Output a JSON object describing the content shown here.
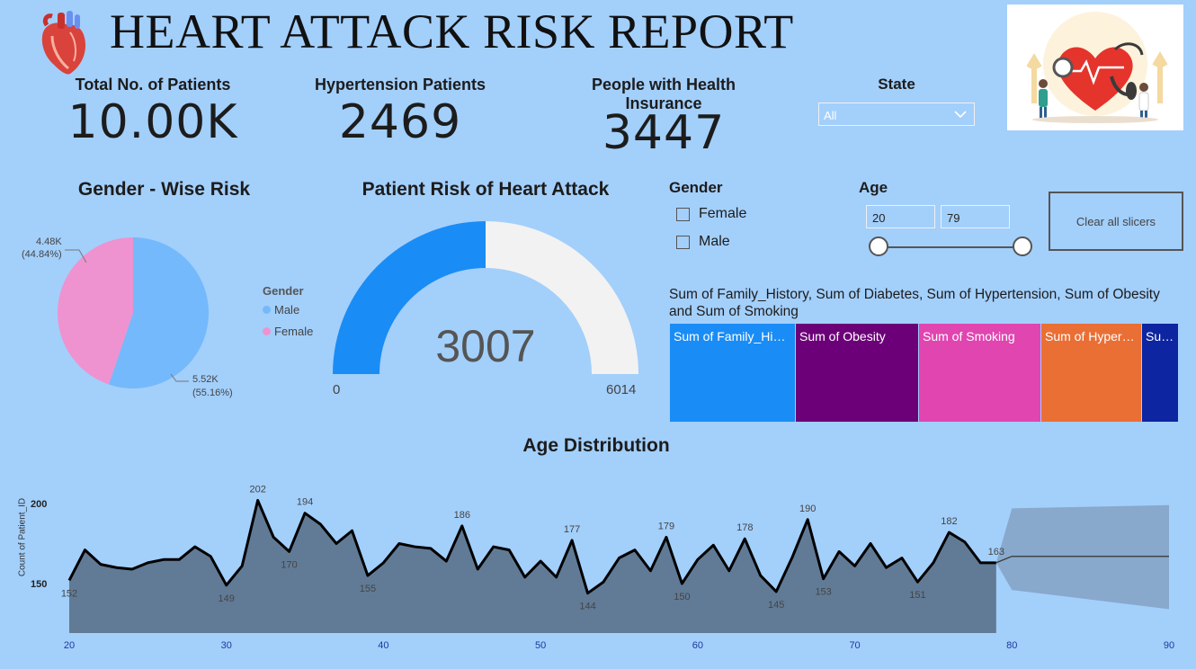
{
  "header": {
    "title": "HEART ATTACK RISK REPORT"
  },
  "kpis": [
    {
      "label": "Total No. of Patients",
      "value": "10.00K"
    },
    {
      "label": "Hypertension Patients",
      "value": "2469"
    },
    {
      "label": "People with Health Insurance",
      "value": "3447"
    }
  ],
  "state_slicer": {
    "title": "State",
    "selected": "All"
  },
  "gender_slicer": {
    "title": "Gender",
    "options": [
      "Female",
      "Male"
    ]
  },
  "age_slicer": {
    "title": "Age",
    "min": "20",
    "max": "79"
  },
  "clear_button": {
    "label": "Clear all slicers"
  },
  "colors": {
    "background": "#a3cffb",
    "male": "#74b9fc",
    "female": "#ee93cf",
    "gauge_fill": "#1a8cf5",
    "gauge_track": "#f2f2f2",
    "area_fill": "#617b96",
    "forecast": "#88a8cc"
  },
  "gender_chart": {
    "title": "Gender - Wise Risk",
    "legend_title": "Gender",
    "slice_labels": [
      {
        "value": "4.48K",
        "pct": "(44.84%)"
      },
      {
        "value": "5.52K",
        "pct": "(55.16%)"
      }
    ]
  },
  "gauge": {
    "title": "Patient Risk of Heart Attack",
    "value_label": "3007",
    "min_label": "0",
    "max_label": "6014"
  },
  "treemap": {
    "title": "Sum of Family_History, Sum of Diabetes, Sum of Hypertension, Sum of Obesity and Sum of Smoking",
    "cells": [
      {
        "label": "Sum of Family_History",
        "color": "#1a8cf5"
      },
      {
        "label": "Sum of Obesity",
        "color": "#6c0078"
      },
      {
        "label": "Sum of Smoking",
        "color": "#e045b0"
      },
      {
        "label": "Sum of Hypertension",
        "color": "#ea6f35"
      },
      {
        "label": "Sum of Diabetes",
        "color": "#0d25a0"
      }
    ]
  },
  "age_chart": {
    "title": "Age Distribution",
    "ylabel": "Count of Patient_ID"
  },
  "chart_data": [
    {
      "type": "pie",
      "categories": [
        "Male",
        "Female"
      ],
      "values": [
        5.52,
        4.48
      ],
      "percents": [
        55.16,
        44.84
      ],
      "legend": "left-of-center"
    },
    {
      "type": "gauge",
      "value": 3007,
      "min": 0,
      "max": 6014
    },
    {
      "type": "treemap",
      "categories": [
        "Sum of Family_History",
        "Sum of Obesity",
        "Sum of Smoking",
        "Sum of Hypertension",
        "Sum of Diabetes"
      ],
      "relative_sizes": [
        139,
        137,
        136,
        112,
        41
      ]
    },
    {
      "type": "area",
      "x": [
        20,
        21,
        22,
        23,
        24,
        25,
        26,
        27,
        28,
        29,
        30,
        31,
        32,
        33,
        34,
        35,
        36,
        37,
        38,
        39,
        40,
        41,
        42,
        43,
        44,
        45,
        46,
        47,
        48,
        49,
        50,
        51,
        52,
        53,
        54,
        55,
        56,
        57,
        58,
        59,
        60,
        61,
        62,
        63,
        64,
        65,
        66,
        67,
        68,
        69,
        70,
        71,
        72,
        73,
        74,
        75,
        76,
        77,
        78,
        79
      ],
      "y": [
        152,
        171,
        162,
        160,
        159,
        163,
        165,
        165,
        173,
        167,
        149,
        161,
        202,
        179,
        170,
        194,
        187,
        175,
        183,
        155,
        163,
        175,
        173,
        172,
        164,
        186,
        159,
        173,
        171,
        154,
        164,
        154,
        177,
        144,
        151,
        166,
        171,
        158,
        179,
        150,
        165,
        174,
        158,
        178,
        155,
        145,
        166,
        190,
        153,
        170,
        161,
        175,
        160,
        166,
        151,
        163,
        182,
        176,
        163,
        163
      ],
      "point_labels": {
        "20": "152",
        "30": "149",
        "32": "202",
        "34": "170",
        "35": "194",
        "39": "155",
        "45": "186",
        "52": "177",
        "53": "144",
        "58": "179",
        "59": "150",
        "63": "178",
        "65": "145",
        "67": "190",
        "68": "153",
        "74": "151",
        "76": "182",
        "79": "163"
      },
      "forecast": {
        "x": [
          79,
          80,
          90
        ],
        "y": [
          163,
          167,
          167
        ],
        "upper": [
          163,
          197,
          199
        ],
        "lower": [
          163,
          146,
          134
        ]
      },
      "xlim": [
        20,
        90
      ],
      "x_ticks": [
        20,
        30,
        40,
        50,
        60,
        70,
        80,
        90
      ],
      "y_ticks": [
        150,
        200
      ],
      "ylim": [
        125,
        210
      ]
    }
  ]
}
